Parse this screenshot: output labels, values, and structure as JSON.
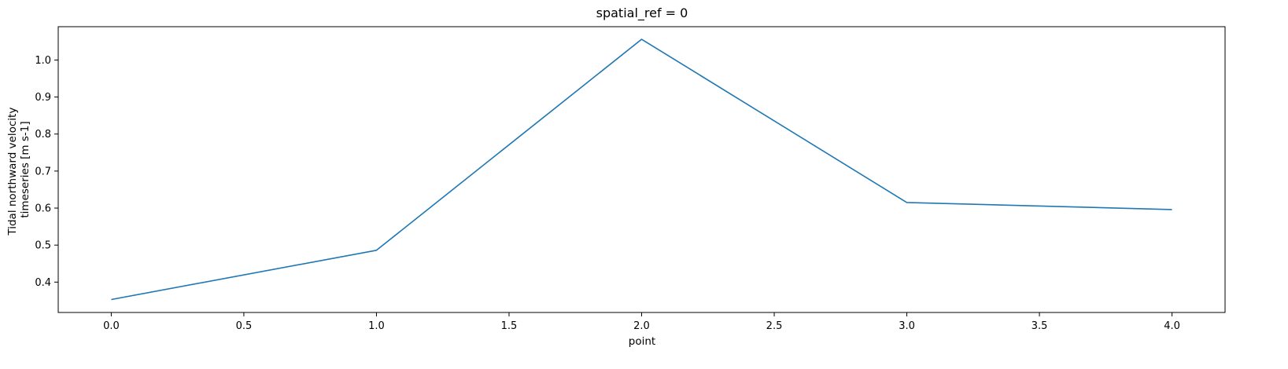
{
  "chart_data": {
    "type": "line",
    "title": "spatial_ref = 0",
    "xlabel": "point",
    "ylabel_lines": [
      "Tidal northward velocity",
      "timeseries [m s-1]"
    ],
    "xlim": [
      -0.2,
      4.2
    ],
    "ylim": [
      0.318,
      1.09
    ],
    "xticks": [
      0.0,
      0.5,
      1.0,
      1.5,
      2.0,
      2.5,
      3.0,
      3.5,
      4.0
    ],
    "xtick_labels": [
      "0.0",
      "0.5",
      "1.0",
      "1.5",
      "2.0",
      "2.5",
      "3.0",
      "3.5",
      "4.0"
    ],
    "yticks": [
      0.4,
      0.5,
      0.6,
      0.7,
      0.8,
      0.9,
      1.0
    ],
    "ytick_labels": [
      "0.4",
      "0.5",
      "0.6",
      "0.7",
      "0.8",
      "0.9",
      "1.0"
    ],
    "grid": false,
    "series": [
      {
        "color": "#1f77b4",
        "x": [
          0,
          1,
          2,
          3,
          4
        ],
        "y": [
          0.353,
          0.486,
          1.056,
          0.615,
          0.596
        ]
      }
    ]
  }
}
